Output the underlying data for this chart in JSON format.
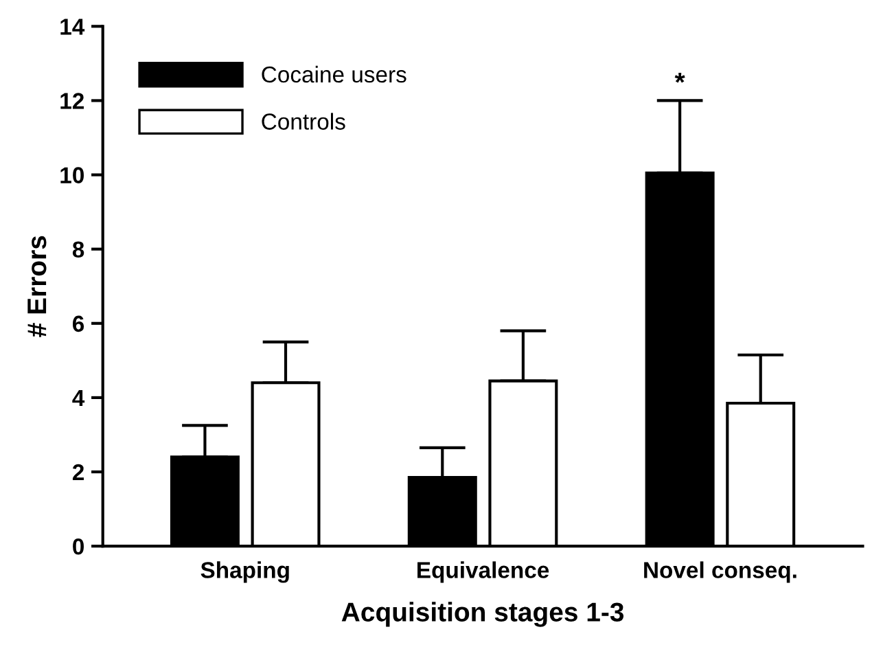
{
  "chart_data": {
    "type": "bar",
    "xlabel": "Acquisition stages 1-3",
    "ylabel": "# Errors",
    "categories": [
      "Shaping",
      "Equivalence",
      "Novel conseq."
    ],
    "series": [
      {
        "name": "Cocaine users",
        "color": "#000000",
        "values": [
          2.4,
          1.85,
          10.05
        ],
        "errors": [
          [
            2.4,
            3.25
          ],
          [
            1.85,
            2.65
          ],
          [
            10.05,
            12.0
          ]
        ]
      },
      {
        "name": "Controls",
        "color": "#ffffff",
        "values": [
          4.4,
          4.45,
          3.85
        ],
        "errors": [
          [
            4.4,
            5.5
          ],
          [
            4.45,
            5.8
          ],
          [
            3.85,
            5.15
          ]
        ]
      }
    ],
    "ylim": [
      0,
      14
    ],
    "yticks": [
      0,
      2,
      4,
      6,
      8,
      10,
      12,
      14
    ],
    "grid": false,
    "legend": "top left",
    "annotations": [
      "*"
    ]
  }
}
